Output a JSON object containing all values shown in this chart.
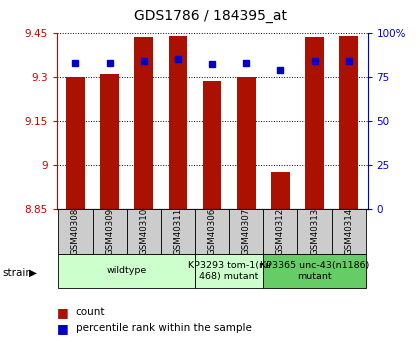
{
  "title": "GDS1786 / 184395_at",
  "samples": [
    "GSM40308",
    "GSM40309",
    "GSM40310",
    "GSM40311",
    "GSM40306",
    "GSM40307",
    "GSM40312",
    "GSM40313",
    "GSM40314"
  ],
  "count_values": [
    9.3,
    9.31,
    9.435,
    9.44,
    9.285,
    9.3,
    8.975,
    9.435,
    9.44
  ],
  "percentile_values": [
    83,
    83,
    84,
    85,
    82,
    83,
    79,
    84,
    84
  ],
  "ylim_left": [
    8.85,
    9.45
  ],
  "ylim_right": [
    0,
    100
  ],
  "yticks_left": [
    8.85,
    9.0,
    9.15,
    9.3,
    9.45
  ],
  "ytick_labels_left": [
    "8.85",
    "9",
    "9.15",
    "9.3",
    "9.45"
  ],
  "yticks_right": [
    0,
    25,
    50,
    75,
    100
  ],
  "ytick_labels_right": [
    "0",
    "25",
    "50",
    "75",
    "100%"
  ],
  "bar_color": "#aa1100",
  "dot_color": "#0000cc",
  "background_color": "#ffffff",
  "ylabel_left_color": "#cc0000",
  "ylabel_right_color": "#0000cc",
  "bar_width": 0.55,
  "base_value": 8.85,
  "group_wildtype": {
    "label": "wildtype",
    "start": 0,
    "end": 4,
    "color": "#ccffcc"
  },
  "group_tom1": {
    "label": "KP3293 tom-1(nu\n468) mutant",
    "start": 4,
    "end": 6,
    "color": "#ccffcc"
  },
  "group_unc43": {
    "label": "KP3365 unc-43(n1186)\nmutant",
    "start": 6,
    "end": 9,
    "color": "#66cc66"
  },
  "sample_box_color": "#cccccc",
  "legend_count_label": "count",
  "legend_pct_label": "percentile rank within the sample",
  "strain_label": "strain"
}
